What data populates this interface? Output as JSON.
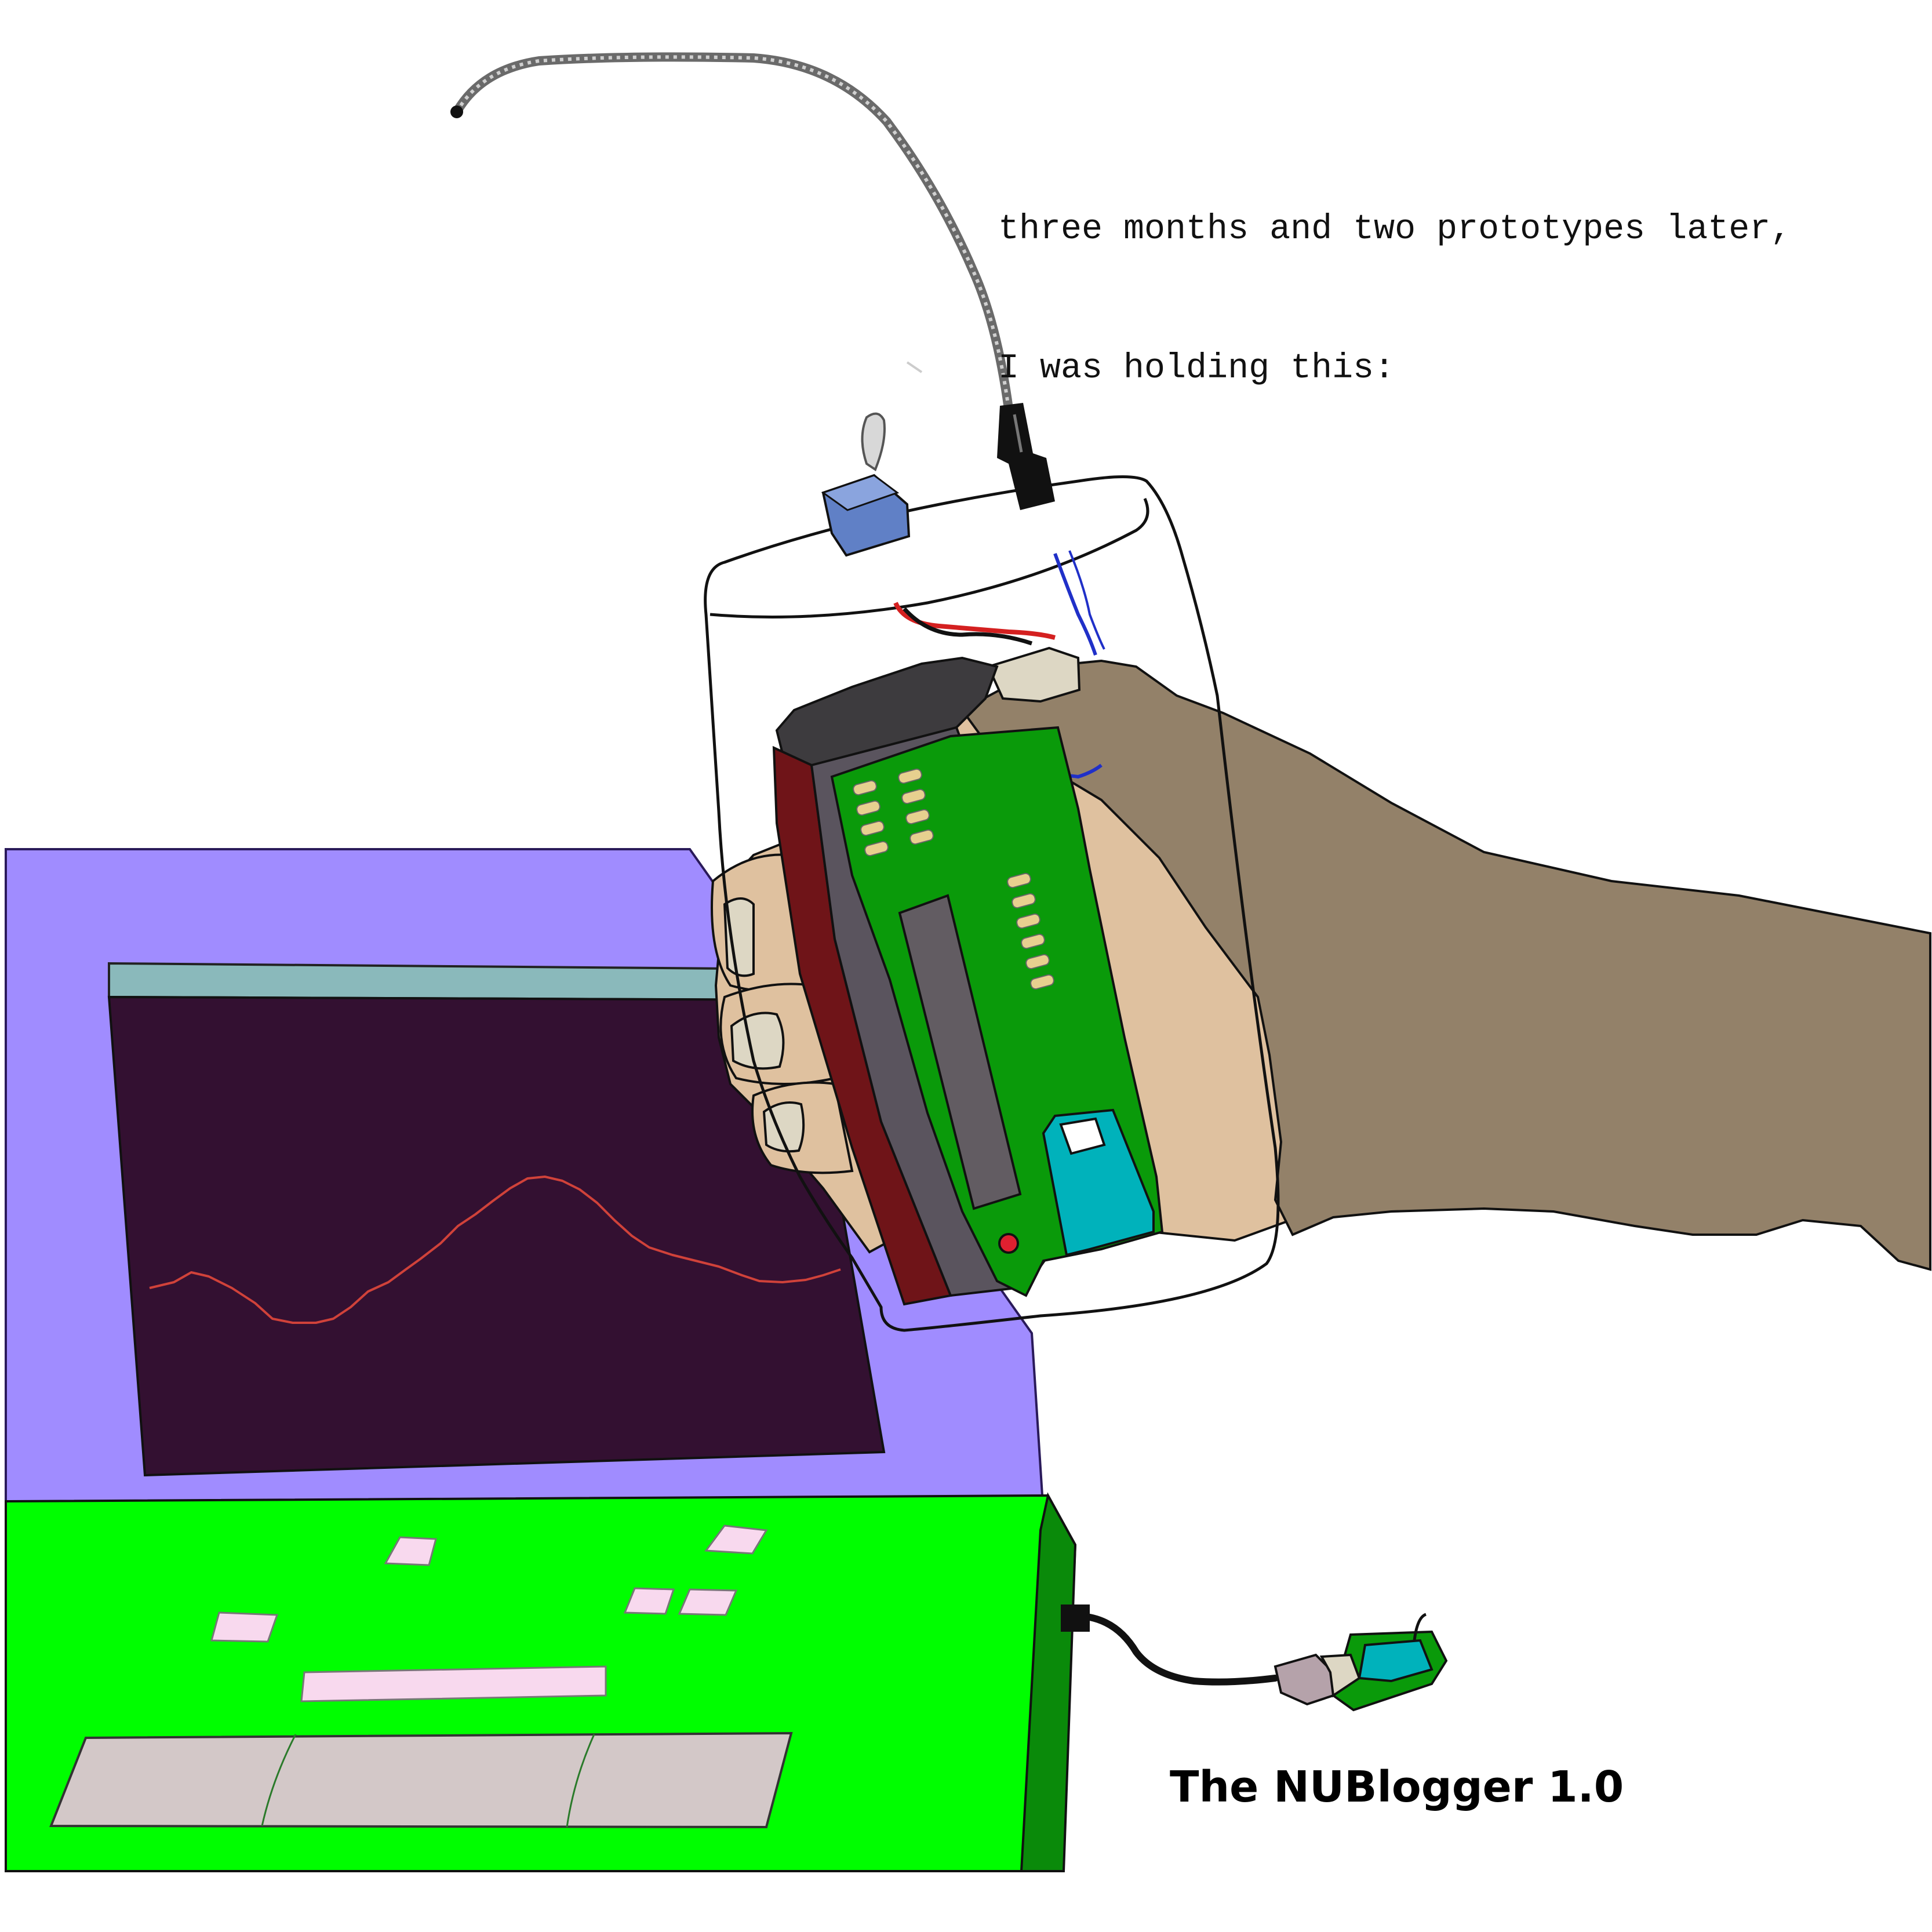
{
  "caption": {
    "line1": "three months and two prototypes later,",
    "line2": "I was holding this:"
  },
  "title": "The NUBlogger 1.0",
  "colors": {
    "background": "#ffffff",
    "laptop_lid": "#a08cff",
    "laptop_screen": "#331031",
    "laptop_screen_titlebar": "#8ab9bb",
    "waveform": "#d0423a",
    "laptop_base": "#00fe00",
    "laptop_base_side": "#0a8a0a",
    "keys": "#f8d9ee",
    "trackpad": "#d3c8c8",
    "glove": "#938169",
    "skin": "#dfc19f",
    "fingernail": "#ddd7c4",
    "pcb": "#0a9a0a",
    "lcd": "#625c62",
    "pcb_pads": "#e7d08f",
    "teal_module": "#00b2bb",
    "case_red": "#6f1418",
    "case_gray": "#5a545e",
    "case_top": "#3d3b3e",
    "switch_blue": "#6080c6",
    "cable": "#444444",
    "red_wire": "#d42020",
    "blue_wire": "#2030c8"
  }
}
